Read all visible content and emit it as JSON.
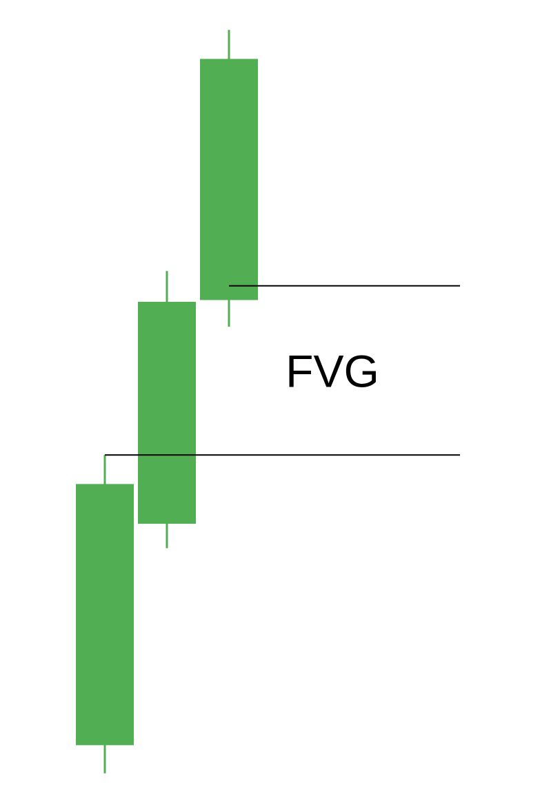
{
  "chart_data": {
    "type": "candlestick",
    "title": "",
    "xlabel": "",
    "ylabel": "",
    "grid": false,
    "legend": "none",
    "candles": [
      {
        "open": 82,
        "close": 982,
        "high": 1082,
        "low": -15
      },
      {
        "open": 845,
        "close": 1610,
        "high": 1716,
        "low": 761
      },
      {
        "open": 1616,
        "close": 2447,
        "high": 2547,
        "low": 1524
      }
    ],
    "zone": {
      "label": "FVG",
      "lower": 1082,
      "upper": 1665
    },
    "ylim": [
      -100,
      2650
    ],
    "colors": {
      "candle": "#52ae52",
      "zone_line": "#000000"
    }
  }
}
